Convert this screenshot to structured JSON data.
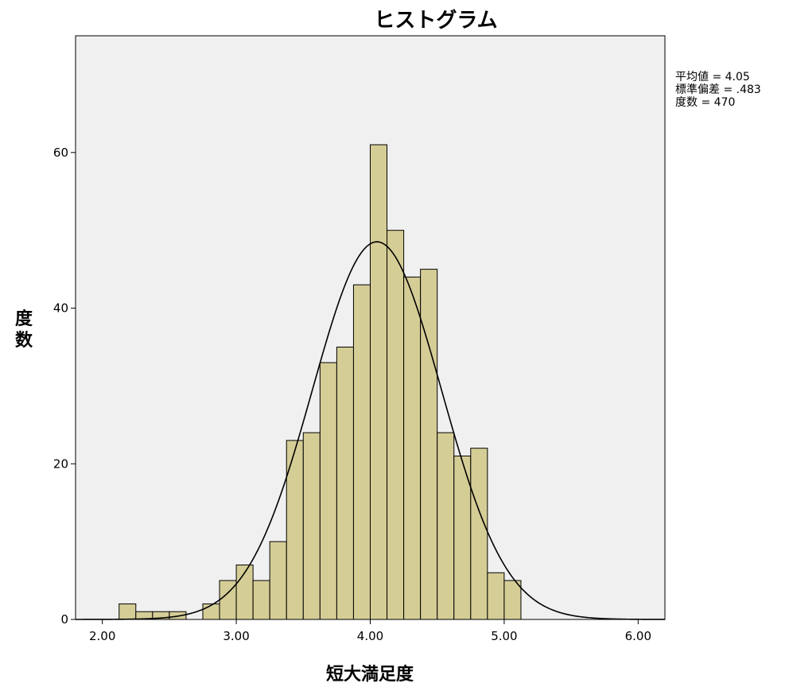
{
  "chart_data": {
    "type": "bar",
    "title": "ヒストグラム",
    "xlabel": "短大満足度",
    "ylabel": "度数",
    "xlim": [
      1.8,
      6.2
    ],
    "ylim": [
      0,
      75
    ],
    "x_ticks": [
      "2.00",
      "3.00",
      "4.00",
      "5.00",
      "6.00"
    ],
    "y_ticks": [
      "0",
      "20",
      "40",
      "60"
    ],
    "bin_width": 0.125,
    "bin_starts": [
      2.125,
      2.25,
      2.375,
      2.5,
      2.625,
      2.75,
      2.875,
      3.0,
      3.125,
      3.25,
      3.375,
      3.5,
      3.625,
      3.75,
      3.875,
      4.0,
      4.125,
      4.25,
      4.375,
      4.5,
      4.625,
      4.75,
      4.875,
      5.0
    ],
    "values": [
      2,
      1,
      1,
      1,
      0,
      2,
      5,
      7,
      5,
      10,
      23,
      24,
      33,
      35,
      43,
      61,
      50,
      44,
      45,
      24,
      21,
      22,
      6,
      5
    ],
    "normal_curve": {
      "mean": 4.05,
      "sd": 0.483,
      "n": 470
    },
    "stats": [
      {
        "label": "平均値",
        "value": "4.05"
      },
      {
        "label": "標準偏差",
        "value": ".483"
      },
      {
        "label": "度数",
        "value": "470"
      }
    ],
    "bar_color": "#d5cd96",
    "plot_background": "#f0f0f0",
    "grid": false
  }
}
